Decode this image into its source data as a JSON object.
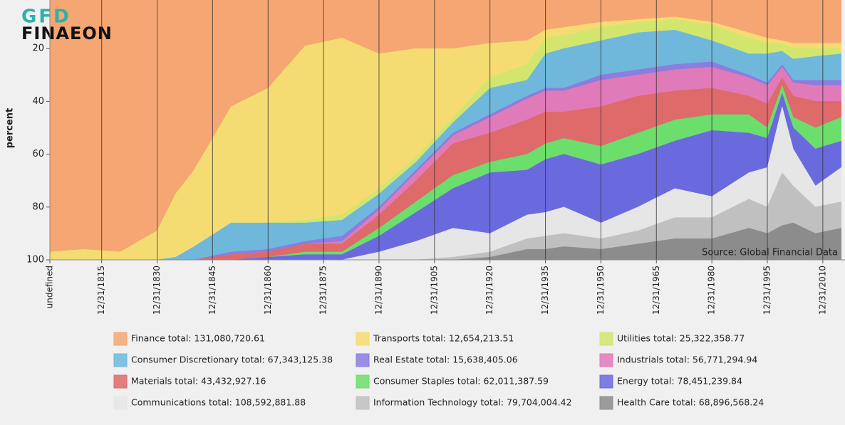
{
  "logo": {
    "top": "GFD",
    "bottom": "FINAEON"
  },
  "chart_data": {
    "type": "stacked-area",
    "y_label": "percent",
    "source": "Source: Global Financial Data",
    "y_inverted": true,
    "ylim": [
      0,
      100
    ],
    "yticks": [
      20,
      40,
      60,
      80,
      100
    ],
    "xlim": [
      1801,
      2016
    ],
    "xticks": [
      {
        "value": 1801,
        "label": "undefined"
      },
      {
        "value": 1815,
        "label": "12/31/1815"
      },
      {
        "value": 1830,
        "label": "12/31/1830"
      },
      {
        "value": 1845,
        "label": "12/31/1845"
      },
      {
        "value": 1860,
        "label": "12/31/1860"
      },
      {
        "value": 1875,
        "label": "12/31/1875"
      },
      {
        "value": 1890,
        "label": "12/31/1890"
      },
      {
        "value": 1905,
        "label": "12/31/1905"
      },
      {
        "value": 1920,
        "label": "12/31/1920"
      },
      {
        "value": 1935,
        "label": "12/31/1935"
      },
      {
        "value": 1950,
        "label": "12/31/1950"
      },
      {
        "value": 1965,
        "label": "12/31/1965"
      },
      {
        "value": 1980,
        "label": "12/31/1980"
      },
      {
        "value": 1995,
        "label": "12/31/1995"
      },
      {
        "value": 2010,
        "label": "12/31/2010"
      }
    ],
    "grid": true,
    "x": [
      1801,
      1810,
      1820,
      1830,
      1835,
      1840,
      1850,
      1860,
      1870,
      1880,
      1890,
      1900,
      1910,
      1920,
      1930,
      1935,
      1940,
      1950,
      1960,
      1970,
      1980,
      1990,
      1995,
      1999,
      2002,
      2008,
      2015
    ],
    "series": [
      {
        "name": "Finance total: 131,080,720.61",
        "color": "#f5a672",
        "values": [
          97,
          96,
          97,
          89,
          75,
          66,
          42,
          35,
          19,
          16,
          22,
          20,
          20,
          18,
          17,
          13,
          12,
          10,
          9,
          8,
          10,
          14,
          16,
          17,
          18,
          18,
          18
        ]
      },
      {
        "name": "Transports total: 12,654,213.51",
        "color": "#f5dc72",
        "values": [
          3,
          4,
          3,
          11,
          24,
          29,
          44,
          51,
          66,
          67,
          51,
          41,
          26,
          13,
          9,
          3,
          3,
          2,
          1,
          1,
          1,
          2,
          2,
          1,
          2,
          2,
          2
        ]
      },
      {
        "name": "Utilities total: 25,322,358.77",
        "color": "#d2e66e",
        "values": [
          0,
          0,
          0,
          0,
          0,
          0,
          0,
          0,
          1,
          2,
          2,
          2,
          2,
          4,
          6,
          6,
          5,
          5,
          4,
          4,
          6,
          6,
          4,
          3,
          4,
          3,
          2
        ]
      },
      {
        "name": "Consumer Discretionary total: 67,343,125.38",
        "color": "#6fb8dc",
        "values": [
          0,
          0,
          0,
          0,
          1,
          5,
          11,
          10,
          7,
          6,
          5,
          3,
          4,
          10,
          6,
          13,
          15,
          13,
          14,
          13,
          8,
          8,
          11,
          5,
          8,
          9,
          10
        ]
      },
      {
        "name": "Real Estate total: 15,638,405.06",
        "color": "#8a7ee0",
        "values": [
          0,
          0,
          0,
          0,
          0,
          0,
          1,
          1,
          1,
          2,
          1,
          1,
          1,
          1,
          1,
          1,
          1,
          2,
          2,
          2,
          2,
          1,
          1,
          1,
          1,
          2,
          2
        ]
      },
      {
        "name": "Industrials total: 56,771,294.94",
        "color": "#e07ab8",
        "values": [
          0,
          0,
          0,
          0,
          0,
          0,
          0,
          0,
          0,
          1,
          2,
          3,
          3,
          6,
          8,
          8,
          8,
          10,
          8,
          8,
          8,
          7,
          7,
          4,
          5,
          6,
          6
        ]
      },
      {
        "name": "Materials total: 43,432,927.16",
        "color": "#de6a6a",
        "values": [
          0,
          0,
          0,
          0,
          0,
          0,
          2,
          2,
          3,
          3,
          5,
          8,
          12,
          11,
          13,
          12,
          10,
          15,
          14,
          11,
          10,
          7,
          9,
          3,
          8,
          10,
          6
        ]
      },
      {
        "name": "Consumer Staples total: 62,011,387.59",
        "color": "#6bde6b",
        "values": [
          0,
          0,
          0,
          0,
          0,
          0,
          0,
          0,
          1,
          1,
          3,
          4,
          5,
          4,
          6,
          6,
          6,
          7,
          8,
          8,
          6,
          7,
          4,
          3,
          4,
          8,
          9
        ]
      },
      {
        "name": "Energy total: 78,451,239.84",
        "color": "#6a6ade",
        "values": [
          0,
          0,
          0,
          0,
          0,
          0,
          0,
          1,
          2,
          2,
          6,
          11,
          15,
          23,
          17,
          20,
          20,
          22,
          20,
          18,
          25,
          15,
          11,
          5,
          8,
          14,
          10
        ]
      },
      {
        "name": "Communications total: 108,592,881.88",
        "color": "#e6e6e6",
        "values": [
          0,
          0,
          0,
          0,
          0,
          0,
          0,
          0,
          0,
          0,
          3,
          7,
          11,
          7,
          9,
          9,
          10,
          6,
          9,
          11,
          8,
          10,
          15,
          25,
          14,
          8,
          13
        ]
      },
      {
        "name": "Information Technology total: 79,704,004.42",
        "color": "#c0c0c0",
        "values": [
          0,
          0,
          0,
          0,
          0,
          0,
          0,
          0,
          0,
          0,
          0,
          0,
          1,
          2,
          4,
          5,
          5,
          4,
          5,
          8,
          8,
          11,
          10,
          20,
          14,
          10,
          10
        ]
      },
      {
        "name": "Health Care total: 68,896,568.24",
        "color": "#8c8c8c",
        "values": [
          0,
          0,
          0,
          0,
          0,
          0,
          0,
          0,
          0,
          0,
          0,
          0,
          0,
          1,
          4,
          4,
          5,
          4,
          6,
          8,
          8,
          12,
          10,
          13,
          14,
          10,
          12
        ]
      }
    ]
  }
}
